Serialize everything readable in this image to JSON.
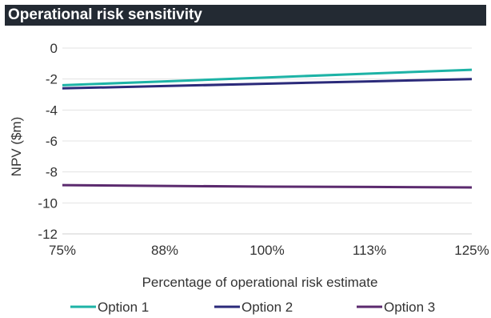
{
  "chart_data": {
    "type": "line",
    "title": "Operational risk sensitivity",
    "xlabel": "Percentage of operational risk estimate",
    "ylabel": "NPV ($m)",
    "x": [
      75,
      87.5,
      100,
      112.5,
      125
    ],
    "x_tick_labels": [
      "75%",
      "88%",
      "100%",
      "113%",
      "125%"
    ],
    "y_ticks": [
      0,
      -2,
      -4,
      -6,
      -8,
      -10,
      -12
    ],
    "ylim": [
      -12,
      0
    ],
    "xlim": [
      75,
      125
    ],
    "grid": true,
    "legend_position": "bottom",
    "series": [
      {
        "name": "Option 1",
        "color": "#1db3a6",
        "values": [
          -2.4,
          -2.15,
          -1.9,
          -1.65,
          -1.4
        ]
      },
      {
        "name": "Option 2",
        "color": "#2b2a7a",
        "values": [
          -2.6,
          -2.45,
          -2.3,
          -2.15,
          -2.0
        ]
      },
      {
        "name": "Option 3",
        "color": "#5b2a6e",
        "values": [
          -8.85,
          -8.9,
          -8.95,
          -8.97,
          -9.0
        ]
      }
    ]
  }
}
